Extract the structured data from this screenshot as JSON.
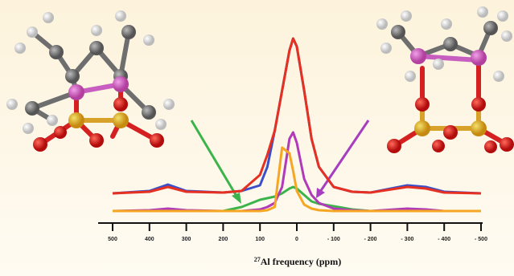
{
  "chart_data": {
    "type": "line",
    "x": [
      500,
      400,
      350,
      300,
      200,
      150,
      100,
      80,
      60,
      40,
      20,
      10,
      0,
      -20,
      -40,
      -60,
      -100,
      -150,
      -200,
      -300,
      -350,
      -400,
      -500
    ],
    "series": [
      {
        "color": "#3a4fc8",
        "values": [
          22,
          25,
          33,
          25,
          23,
          25,
          32,
          55,
          100,
          150,
          200,
          215,
          205,
          150,
          90,
          55,
          30,
          24,
          23,
          32,
          30,
          24,
          22
        ]
      },
      {
        "color": "#e53022",
        "values": [
          22,
          24,
          30,
          24,
          23,
          25,
          45,
          70,
          100,
          150,
          200,
          215,
          205,
          150,
          90,
          55,
          30,
          24,
          23,
          30,
          28,
          23,
          22
        ]
      },
      {
        "color": "#3cb44b",
        "values": [
          0,
          0,
          0,
          0,
          0,
          5,
          14,
          16,
          18,
          22,
          28,
          30,
          28,
          20,
          12,
          9,
          6,
          2,
          0,
          0,
          0,
          0,
          0
        ]
      },
      {
        "color": "#b03ab8",
        "values": [
          0,
          1,
          3,
          1,
          0,
          0,
          2,
          5,
          10,
          30,
          90,
          98,
          85,
          40,
          20,
          10,
          3,
          1,
          0,
          3,
          2,
          0,
          0
        ]
      },
      {
        "color": "#f5a623",
        "values": [
          0,
          0,
          0,
          0,
          0,
          0,
          0,
          1,
          5,
          79,
          72,
          50,
          25,
          8,
          3,
          1,
          0,
          0,
          0,
          0,
          0,
          0,
          0
        ]
      }
    ],
    "xlim": [
      500,
      -500
    ],
    "ylim": [
      0,
      220
    ],
    "xticks": [
      500,
      400,
      300,
      200,
      100,
      0,
      {
        "value": -100,
        "label": "- 100"
      },
      {
        "value": -200,
        "label": "- 200"
      },
      {
        "value": -300,
        "label": "- 300"
      },
      {
        "value": -400,
        "label": "- 400"
      },
      {
        "value": -500,
        "label": "- 500"
      }
    ],
    "xlabel": {
      "sup": "27",
      "text": "Al frequency (ppm)"
    }
  }
}
